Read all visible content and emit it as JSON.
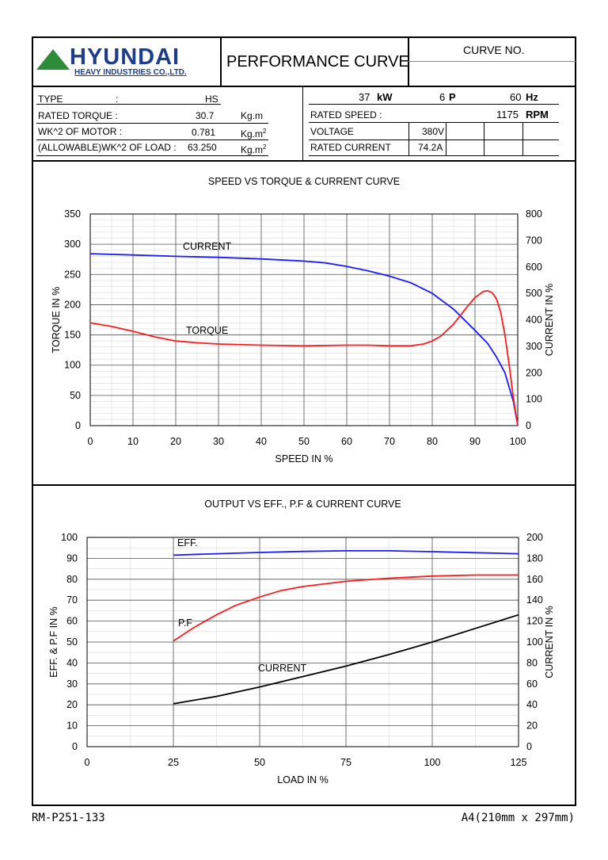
{
  "header": {
    "company": "HYUNDAI",
    "company_sub": "HEAVY INDUSTRIES CO.,LTD.",
    "title": "PERFORMANCE CURVE",
    "curve_no_label": "CURVE NO.",
    "brand_colors": {
      "logo_green": "#2e8b3a",
      "logo_text": "#1c3d8a"
    }
  },
  "specs_left": {
    "type_label": "TYPE",
    "type_colon": ":",
    "type_value": "HS",
    "rated_torque_label": "RATED TORQUE :",
    "rated_torque_value": "30.7",
    "rated_torque_unit": "Kg.m",
    "wk2_motor_label": "WK^2 OF MOTOR :",
    "wk2_motor_value": "0.781",
    "wk2_motor_unit": "Kg.m",
    "wk2_motor_sup": "2",
    "wk2_load_label": "(ALLOWABLE)WK^2 OF LOAD :",
    "wk2_load_value": "63.250",
    "wk2_load_unit": "Kg.m",
    "wk2_load_sup": "2"
  },
  "specs_right": {
    "power_value": "37",
    "power_unit": "kW",
    "poles_value": "6",
    "poles_unit": "P",
    "freq_value": "60",
    "freq_unit": "Hz",
    "rated_speed_label": "RATED SPEED :",
    "rated_speed_value": "1175",
    "rated_speed_unit": "RPM",
    "voltage_label": "VOLTAGE",
    "voltage_value": "380V",
    "rated_current_label": "RATED CURRENT",
    "rated_current_value": "74.2A"
  },
  "chart_data": [
    {
      "type": "line",
      "title": "SPEED VS TORQUE & CURRENT CURVE",
      "xlabel": "SPEED IN %",
      "ylabel": "TORQUE IN %",
      "y2label": "CURRENT IN %",
      "xlim": [
        0,
        100
      ],
      "ylim": [
        0,
        350
      ],
      "y2lim": [
        0,
        800
      ],
      "xticks": [
        0,
        10,
        20,
        30,
        40,
        50,
        60,
        70,
        80,
        90,
        100
      ],
      "yticks": [
        0,
        50,
        100,
        150,
        200,
        250,
        300,
        350
      ],
      "y2ticks": [
        0,
        100,
        200,
        300,
        400,
        500,
        600,
        700,
        800
      ],
      "grid": true,
      "series": [
        {
          "name": "CURRENT",
          "axis": "y2",
          "color": "#1a1aff",
          "x": [
            0,
            10,
            20,
            30,
            40,
            50,
            55,
            60,
            65,
            70,
            75,
            80,
            85,
            90,
            93,
            95,
            97,
            99,
            100
          ],
          "y": [
            650,
            645,
            640,
            636,
            630,
            622,
            615,
            602,
            585,
            565,
            540,
            500,
            440,
            360,
            310,
            260,
            200,
            90,
            0
          ]
        },
        {
          "name": "TORQUE",
          "axis": "y",
          "color": "#ff1a1a",
          "x": [
            0,
            5,
            10,
            15,
            20,
            25,
            30,
            40,
            50,
            60,
            65,
            70,
            75,
            78,
            80,
            82,
            85,
            88,
            90,
            92,
            93,
            94,
            95,
            96,
            97,
            98,
            99,
            100
          ],
          "y": [
            170,
            164,
            156,
            147,
            140,
            137,
            135,
            133,
            132,
            133,
            133,
            132,
            132,
            135,
            140,
            148,
            168,
            195,
            212,
            222,
            223,
            220,
            210,
            188,
            150,
            100,
            45,
            0
          ]
        }
      ]
    },
    {
      "type": "line",
      "title": "OUTPUT VS EFF., P.F & CURRENT CURVE",
      "xlabel": "LOAD IN %",
      "ylabel": "EFF. & P.F IN %",
      "y2label": "CURRENT IN %",
      "xlim": [
        0,
        125
      ],
      "ylim": [
        0,
        100
      ],
      "y2lim": [
        0,
        200
      ],
      "xticks": [
        0,
        25,
        50,
        75,
        100,
        125
      ],
      "yticks": [
        0,
        10,
        20,
        30,
        40,
        50,
        60,
        70,
        80,
        90,
        100
      ],
      "y2ticks": [
        0,
        20,
        40,
        60,
        80,
        100,
        120,
        140,
        160,
        180,
        200
      ],
      "grid": true,
      "series": [
        {
          "name": "EFF.",
          "axis": "y",
          "color": "#1a1aff",
          "x": [
            25,
            37.5,
            50,
            62.5,
            75,
            87.5,
            100,
            112.5,
            125
          ],
          "y": [
            91.5,
            92.2,
            92.8,
            93.3,
            93.6,
            93.6,
            93.2,
            92.7,
            92.2
          ]
        },
        {
          "name": "P.F",
          "axis": "y",
          "color": "#ff1a1a",
          "x": [
            25,
            31,
            37.5,
            43,
            50,
            56,
            62.5,
            75,
            87.5,
            100,
            112.5,
            125
          ],
          "y": [
            50.5,
            57,
            63,
            67.5,
            71.5,
            74.5,
            76.5,
            79,
            80.5,
            81.5,
            82,
            82
          ]
        },
        {
          "name": "CURRENT",
          "axis": "y2",
          "color": "#000000",
          "x": [
            25,
            37.5,
            50,
            62.5,
            75,
            87.5,
            100,
            112.5,
            125
          ],
          "y": [
            41,
            48,
            57,
            67,
            77,
            88,
            100,
            113,
            126
          ]
        }
      ]
    }
  ],
  "footer": {
    "doc_no": "RM-P251-133",
    "paper": "A4(210mm x 297mm)"
  }
}
